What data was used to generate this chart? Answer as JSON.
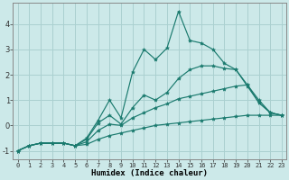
{
  "xlabel": "Humidex (Indice chaleur)",
  "background_color": "#cce9e9",
  "grid_color": "#aad0d0",
  "line_color": "#1a7a6e",
  "x_ticks": [
    0,
    1,
    2,
    3,
    4,
    5,
    6,
    7,
    8,
    9,
    10,
    11,
    12,
    13,
    14,
    15,
    16,
    17,
    18,
    19,
    20,
    21,
    22,
    23
  ],
  "y_ticks": [
    -1,
    0,
    1,
    2,
    3,
    4
  ],
  "ylim": [
    -1.35,
    4.85
  ],
  "xlim": [
    -0.4,
    23.4
  ],
  "series_y": [
    [
      -1.0,
      -0.8,
      -0.7,
      -0.7,
      -0.7,
      -0.8,
      -0.75,
      -0.55,
      -0.4,
      -0.3,
      -0.2,
      -0.1,
      0.0,
      0.05,
      0.1,
      0.15,
      0.2,
      0.25,
      0.3,
      0.35,
      0.4,
      0.4,
      0.4,
      0.4
    ],
    [
      -1.0,
      -0.8,
      -0.7,
      -0.7,
      -0.7,
      -0.8,
      -0.5,
      0.2,
      1.0,
      0.3,
      2.1,
      3.0,
      2.6,
      3.05,
      4.5,
      3.35,
      3.25,
      3.0,
      2.45,
      2.2,
      1.6,
      0.9,
      0.5,
      0.4
    ],
    [
      -1.0,
      -0.8,
      -0.7,
      -0.7,
      -0.7,
      -0.8,
      -0.65,
      -0.2,
      0.05,
      0.0,
      0.3,
      0.5,
      0.7,
      0.85,
      1.05,
      1.15,
      1.25,
      1.35,
      1.45,
      1.55,
      1.6,
      1.0,
      0.5,
      0.4
    ],
    [
      -1.0,
      -0.8,
      -0.7,
      -0.7,
      -0.7,
      -0.8,
      -0.55,
      0.1,
      0.4,
      0.05,
      0.7,
      1.2,
      1.0,
      1.3,
      1.85,
      2.2,
      2.35,
      2.35,
      2.25,
      2.2,
      1.55,
      0.9,
      0.5,
      0.4
    ]
  ]
}
